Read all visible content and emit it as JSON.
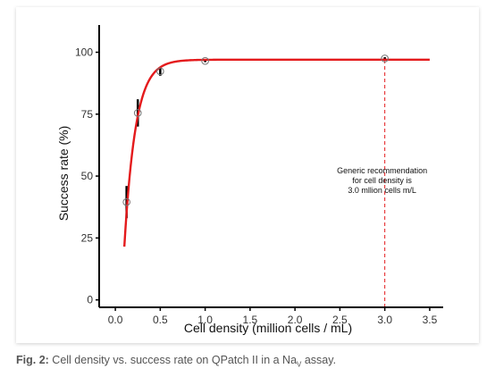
{
  "colors": {
    "curve": "#e41a1c",
    "reference_line": "#e41a1c",
    "points": "#777777",
    "error_bars": "#000000"
  },
  "caption": {
    "label": "Fig. 2:",
    "text_before": "Cell density vs. success rate on QPatch II in a Na",
    "subscript": "V",
    "text_after": " assay."
  },
  "chart_data": {
    "type": "scatter",
    "xlabel": "Cell density (million cells / mL)",
    "ylabel": "Success rate (%)",
    "xlim": [
      -0.18,
      3.65
    ],
    "ylim": [
      -3,
      111
    ],
    "x_ticks": [
      0.0,
      0.5,
      1.0,
      1.5,
      2.0,
      2.5,
      3.0,
      3.5
    ],
    "x_tick_labels": [
      "0.0",
      "0.5",
      "1.0",
      "1.5",
      "2.0",
      "2.5",
      "3.0",
      "3.5"
    ],
    "y_ticks": [
      0,
      25,
      50,
      75,
      100
    ],
    "y_tick_labels": [
      "0",
      "25",
      "50",
      "75",
      "100"
    ],
    "grid": false,
    "points": [
      {
        "x": 0.125,
        "y": 39.5,
        "err_low": 33,
        "err_high": 46
      },
      {
        "x": 0.25,
        "y": 75.5,
        "err_low": 70,
        "err_high": 81
      },
      {
        "x": 0.5,
        "y": 92.3,
        "err_low": 90.5,
        "err_high": 94
      },
      {
        "x": 1.0,
        "y": 96.5,
        "err_low": 96,
        "err_high": 97
      },
      {
        "x": 3.0,
        "y": 97.5,
        "err_low": 97,
        "err_high": 98
      }
    ],
    "fit_curve": {
      "model": "exponential",
      "x_start": 0.1,
      "x_end": 3.5,
      "ymax": 97,
      "y0": 21.5,
      "x0": 0.1,
      "k": 8.0
    },
    "reference_line": {
      "x": 3.0,
      "style": "dashed"
    },
    "annotation": {
      "lines": [
        "Generic recommendation",
        "for cell density is",
        "3.0 mllion cells m/L"
      ],
      "x": 2.97,
      "y": 46
    }
  }
}
